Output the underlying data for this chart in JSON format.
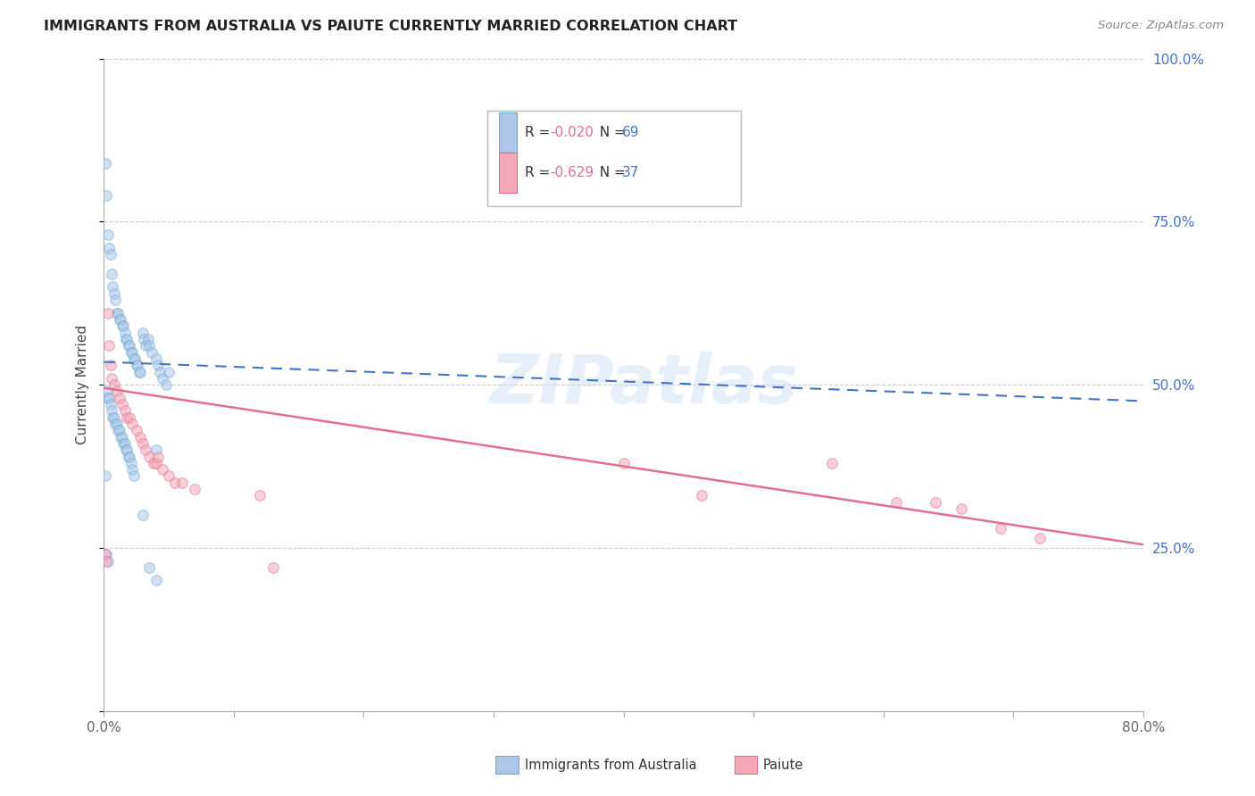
{
  "title": "IMMIGRANTS FROM AUSTRALIA VS PAIUTE CURRENTLY MARRIED CORRELATION CHART",
  "source": "Source: ZipAtlas.com",
  "ylabel": "Currently Married",
  "x_min": 0.0,
  "x_max": 0.8,
  "y_min": 0.0,
  "y_max": 1.0,
  "series1_color": "#aec6e8",
  "series1_edge": "#6baed6",
  "series1_line_color": "#4472c4",
  "series2_color": "#f4a8b8",
  "series2_edge": "#e07090",
  "series2_line_color": "#e07090",
  "marker_size": 70,
  "marker_alpha": 0.55,
  "watermark": "ZIPatlas",
  "background_color": "#ffffff",
  "grid_color": "#cccccc",
  "aus_trend_x0": 0.0,
  "aus_trend_y0": 0.535,
  "aus_trend_x1": 0.8,
  "aus_trend_y1": 0.475,
  "pai_trend_x0": 0.0,
  "pai_trend_y0": 0.495,
  "pai_trend_x1": 0.8,
  "pai_trend_y1": 0.255,
  "australia_x": [
    0.001,
    0.002,
    0.003,
    0.004,
    0.005,
    0.006,
    0.007,
    0.008,
    0.009,
    0.01,
    0.011,
    0.012,
    0.013,
    0.014,
    0.015,
    0.016,
    0.017,
    0.018,
    0.019,
    0.02,
    0.021,
    0.022,
    0.023,
    0.024,
    0.025,
    0.026,
    0.027,
    0.028,
    0.03,
    0.031,
    0.032,
    0.034,
    0.035,
    0.037,
    0.04,
    0.042,
    0.043,
    0.045,
    0.048,
    0.05,
    0.002,
    0.003,
    0.004,
    0.005,
    0.006,
    0.007,
    0.008,
    0.009,
    0.01,
    0.011,
    0.012,
    0.013,
    0.014,
    0.015,
    0.016,
    0.017,
    0.018,
    0.019,
    0.02,
    0.021,
    0.022,
    0.023,
    0.03,
    0.035,
    0.04,
    0.001,
    0.002,
    0.003,
    0.04
  ],
  "australia_y": [
    0.84,
    0.79,
    0.73,
    0.71,
    0.7,
    0.67,
    0.65,
    0.64,
    0.63,
    0.61,
    0.61,
    0.6,
    0.6,
    0.59,
    0.59,
    0.58,
    0.57,
    0.57,
    0.56,
    0.56,
    0.55,
    0.55,
    0.54,
    0.54,
    0.53,
    0.53,
    0.52,
    0.52,
    0.58,
    0.57,
    0.56,
    0.57,
    0.56,
    0.55,
    0.54,
    0.53,
    0.52,
    0.51,
    0.5,
    0.52,
    0.49,
    0.48,
    0.48,
    0.47,
    0.46,
    0.45,
    0.45,
    0.44,
    0.44,
    0.43,
    0.43,
    0.42,
    0.42,
    0.41,
    0.41,
    0.4,
    0.4,
    0.39,
    0.39,
    0.38,
    0.37,
    0.36,
    0.3,
    0.22,
    0.2,
    0.36,
    0.24,
    0.23,
    0.4
  ],
  "paiute_x": [
    0.001,
    0.002,
    0.003,
    0.004,
    0.005,
    0.006,
    0.008,
    0.01,
    0.012,
    0.014,
    0.016,
    0.018,
    0.02,
    0.022,
    0.025,
    0.028,
    0.03,
    0.032,
    0.035,
    0.038,
    0.04,
    0.042,
    0.045,
    0.05,
    0.055,
    0.06,
    0.07,
    0.12,
    0.13,
    0.4,
    0.46,
    0.56,
    0.61,
    0.64,
    0.66,
    0.69,
    0.72
  ],
  "paiute_y": [
    0.24,
    0.23,
    0.61,
    0.56,
    0.53,
    0.51,
    0.5,
    0.49,
    0.48,
    0.47,
    0.46,
    0.45,
    0.45,
    0.44,
    0.43,
    0.42,
    0.41,
    0.4,
    0.39,
    0.38,
    0.38,
    0.39,
    0.37,
    0.36,
    0.35,
    0.35,
    0.34,
    0.33,
    0.22,
    0.38,
    0.33,
    0.38,
    0.32,
    0.32,
    0.31,
    0.28,
    0.265
  ]
}
